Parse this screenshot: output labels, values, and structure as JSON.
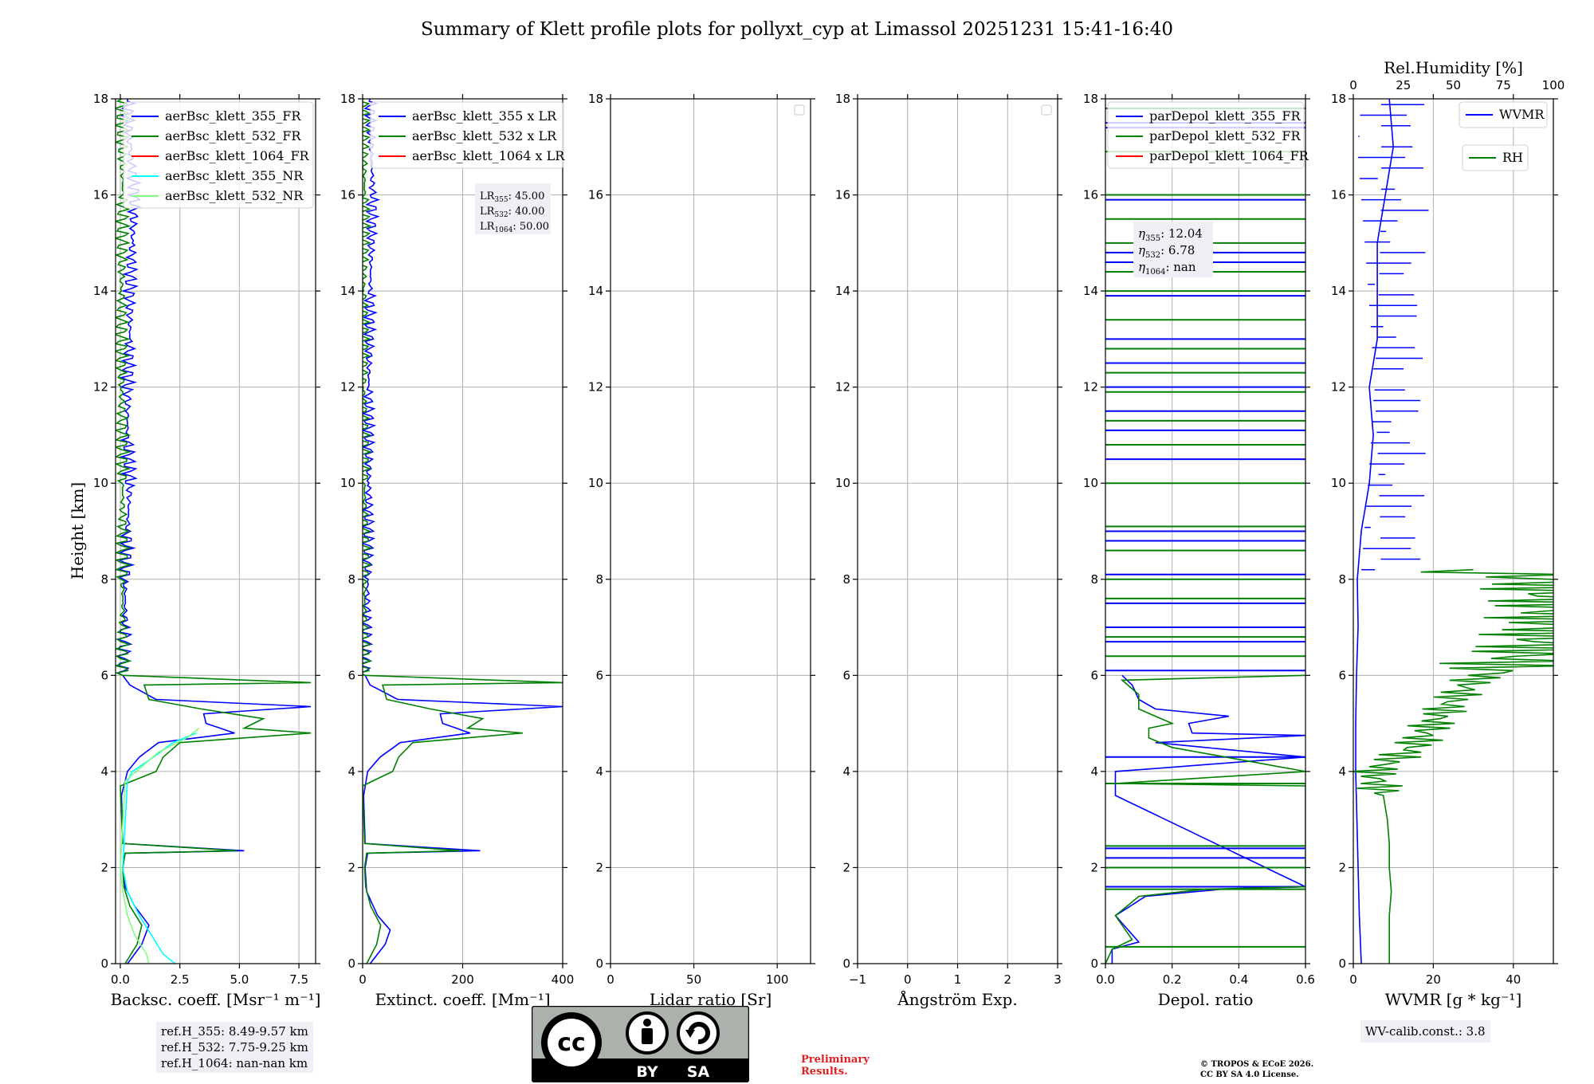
{
  "title": "Summary of Klett profile plots for pollyxt_cyp at Limassol 20251231 15:41-16:40",
  "ylabel": "Height [km]",
  "chart_data": [
    {
      "type": "line",
      "id": "bsc",
      "xlabel": "Backsc. coeff. [Msr⁻¹ m⁻¹]",
      "xlim": [
        -0.2,
        8.2
      ],
      "ylim": [
        0,
        18
      ],
      "xticks": [
        0,
        2.5,
        5,
        7.5
      ],
      "xticklabels": [
        "0.0",
        "2.5",
        "5.0",
        "7.5"
      ],
      "yticks": [
        0,
        2,
        4,
        6,
        8,
        10,
        12,
        14,
        16,
        18
      ],
      "legend": "top-right",
      "series": [
        {
          "name": "aerBsc_klett_355_FR",
          "color": "#0000ff",
          "alt": [
            0,
            0.4,
            0.8,
            1.2,
            1.6,
            2.0,
            2.3,
            2.35,
            2.5,
            3.5,
            4.0,
            4.3,
            4.6,
            4.8,
            5.0,
            5.2,
            5.35,
            5.5,
            5.8,
            6.0,
            7,
            8,
            9,
            10,
            11,
            12,
            13,
            14,
            15,
            16,
            17,
            18
          ],
          "val": [
            0.3,
            0.9,
            1.2,
            0.6,
            0.2,
            0.1,
            0.2,
            5.2,
            0.1,
            0.05,
            0.3,
            0.8,
            1.6,
            4.8,
            3.6,
            3.5,
            8.0,
            1.5,
            0.4,
            0.1,
            0.2,
            0.2,
            0.3,
            0.4,
            0.3,
            0.3,
            0.4,
            0.4,
            0.5,
            0.6,
            0.4,
            0.3
          ]
        },
        {
          "name": "aerBsc_klett_532_FR",
          "color": "#008000",
          "alt": [
            0,
            0.4,
            0.8,
            1.2,
            1.6,
            2.0,
            2.3,
            2.35,
            2.5,
            3.7,
            4.0,
            4.3,
            4.6,
            4.8,
            4.9,
            5.1,
            5.3,
            5.5,
            5.8,
            5.85,
            6.0,
            8,
            10,
            12,
            14,
            16,
            18
          ],
          "val": [
            0.2,
            0.7,
            0.9,
            0.4,
            0.15,
            0.1,
            0.2,
            4.9,
            0.1,
            0.0,
            1.5,
            1.8,
            2.5,
            8.0,
            5.2,
            6.0,
            3.4,
            1.2,
            1.0,
            8.0,
            0.1,
            0.1,
            0.1,
            0.05,
            0.05,
            0.1,
            0.05
          ]
        },
        {
          "name": "aerBsc_klett_1064_FR",
          "color": "#ff0000",
          "alt": [],
          "val": []
        },
        {
          "name": "aerBsc_klett_355_NR",
          "color": "#00ffff",
          "alt": [
            0,
            0.2,
            0.6,
            1.0,
            1.5,
            2.0,
            3.8,
            4.0,
            4.3,
            4.6,
            4.8
          ],
          "val": [
            2.3,
            1.8,
            1.3,
            0.8,
            0.3,
            0.1,
            0.3,
            0.5,
            1.4,
            2.2,
            3.2
          ]
        },
        {
          "name": "aerBsc_klett_532_NR",
          "color": "#80ff80",
          "alt": [
            0,
            0.2,
            0.6,
            1.0,
            1.5,
            2.0,
            3.8,
            4.1,
            4.4,
            4.7,
            4.9
          ],
          "val": [
            1.2,
            1.1,
            0.6,
            0.3,
            0.1,
            0.0,
            0.2,
            0.9,
            1.6,
            2.8,
            3.3
          ]
        }
      ],
      "info": [
        "ref.H_355: 8.49-9.57 km",
        "ref.H_532: 7.75-9.25 km",
        "ref.H_1064: nan-nan km"
      ]
    },
    {
      "type": "line",
      "id": "ext",
      "xlabel": "Extinct. coeff. [Mm⁻¹]",
      "xlim": [
        0,
        400
      ],
      "ylim": [
        0,
        18
      ],
      "xticks": [
        0,
        200,
        400
      ],
      "xticklabels": [
        "0",
        "200",
        "400"
      ],
      "yticks": [
        0,
        2,
        4,
        6,
        8,
        10,
        12,
        14,
        16,
        18
      ],
      "legend": "top-right",
      "series": [
        {
          "name": "aerBsc_klett_355 x LR",
          "color": "#0000ff",
          "alt": [
            0,
            0.4,
            0.7,
            1.0,
            1.5,
            2.0,
            2.3,
            2.35,
            2.5,
            3.5,
            4.0,
            4.3,
            4.6,
            4.8,
            5.0,
            5.2,
            5.35,
            5.5,
            5.8,
            6.0,
            8,
            10,
            12,
            14,
            16,
            18
          ],
          "val": [
            15,
            45,
            55,
            30,
            8,
            5,
            10,
            235,
            5,
            2,
            10,
            35,
            75,
            215,
            160,
            155,
            400,
            70,
            15,
            5,
            10,
            12,
            12,
            15,
            20,
            15
          ]
        },
        {
          "name": "aerBsc_klett_532 x LR",
          "color": "#008000",
          "alt": [
            0,
            0.4,
            0.8,
            1.2,
            1.6,
            2.0,
            2.3,
            2.35,
            2.5,
            3.7,
            4.0,
            4.3,
            4.6,
            4.8,
            4.9,
            5.1,
            5.3,
            5.5,
            5.8,
            5.85,
            6.0,
            8,
            10,
            12,
            14,
            16,
            18
          ],
          "val": [
            8,
            28,
            36,
            16,
            6,
            4,
            8,
            195,
            4,
            0,
            60,
            72,
            100,
            320,
            210,
            240,
            136,
            48,
            40,
            400,
            4,
            4,
            4,
            2,
            2,
            4,
            2
          ]
        },
        {
          "name": "aerBsc_klett_1064 x LR",
          "color": "#ff0000",
          "alt": [],
          "val": []
        }
      ],
      "lr": [
        {
          "sub": "355",
          "val": "45.00"
        },
        {
          "sub": "532",
          "val": "40.00"
        },
        {
          "sub": "1064",
          "val": "50.00"
        }
      ]
    },
    {
      "type": "line",
      "id": "lr",
      "xlabel": "Lidar ratio [Sr]",
      "xlim": [
        0,
        120
      ],
      "ylim": [
        0,
        18
      ],
      "xticks": [
        0,
        50,
        100
      ],
      "xticklabels": [
        "0",
        "50",
        "100"
      ],
      "yticks": [
        0,
        2,
        4,
        6,
        8,
        10,
        12,
        14,
        16,
        18
      ],
      "series": []
    },
    {
      "type": "line",
      "id": "ang",
      "xlabel": "Ångström Exp.",
      "xlim": [
        -1,
        3
      ],
      "ylim": [
        0,
        18
      ],
      "xticks": [
        -1,
        0,
        1,
        2,
        3
      ],
      "xticklabels": [
        "−1",
        "0",
        "1",
        "2",
        "3"
      ],
      "yticks": [
        0,
        2,
        4,
        6,
        8,
        10,
        12,
        14,
        16,
        18
      ],
      "series": []
    },
    {
      "type": "line",
      "id": "dep",
      "xlabel": "Depol. ratio",
      "xlim": [
        0,
        0.6
      ],
      "ylim": [
        0,
        18
      ],
      "xticks": [
        0,
        0.2,
        0.4,
        0.6
      ],
      "xticklabels": [
        "0.0",
        "0.2",
        "0.4",
        "0.6"
      ],
      "yticks": [
        0,
        2,
        4,
        6,
        8,
        10,
        12,
        14,
        16,
        18
      ],
      "legend": "top-right",
      "series": [
        {
          "name": "parDepol_klett_355_FR",
          "color": "#0000ff",
          "alt": [
            0,
            0.3,
            0.45,
            1.0,
            1.4,
            1.55,
            1.6,
            3.5,
            4.0,
            4.3,
            4.6,
            4.75,
            4.8,
            5.0,
            5.15,
            5.3,
            5.5,
            5.8,
            6.0
          ],
          "val": [
            0.02,
            0.02,
            0.1,
            0.03,
            0.12,
            0.35,
            0.6,
            0.03,
            0.03,
            0.6,
            0.15,
            0.6,
            0.26,
            0.25,
            0.37,
            0.15,
            0.1,
            0.08,
            0.05
          ],
          "spikes": [
            1.6,
            2.2,
            2.4,
            4.3,
            6.1,
            6.7,
            7.0,
            7.5,
            8.1,
            8.8,
            9.0,
            10.5,
            11.1,
            11.5,
            12.0,
            12.5,
            13.0,
            13.9,
            14.6,
            14.8,
            15.9,
            16.0,
            17.4,
            17.5
          ]
        },
        {
          "name": "parDepol_klett_532_FR",
          "color": "#008000",
          "alt": [
            0,
            0.3,
            0.5,
            1.0,
            1.4,
            1.55,
            1.6,
            3.7,
            3.75,
            4.0,
            4.5,
            4.7,
            4.9,
            5.0,
            5.3,
            5.6,
            5.9,
            6.0
          ],
          "val": [
            0.0,
            0.02,
            0.08,
            0.03,
            0.1,
            0.3,
            0.6,
            0.6,
            0.03,
            0.6,
            0.2,
            0.13,
            0.13,
            0.2,
            0.1,
            0.1,
            0.05,
            0.6
          ],
          "spikes": [
            0.35,
            1.55,
            2.0,
            2.45,
            3.75,
            6.4,
            6.8,
            7.6,
            8.0,
            8.6,
            9.1,
            10.0,
            10.8,
            11.3,
            11.9,
            12.3,
            12.8,
            13.4,
            14.0,
            14.4,
            15.0,
            15.5,
            16.0,
            16.9,
            17.8
          ]
        },
        {
          "name": "parDepol_klett_1064_FR",
          "color": "#ff0000",
          "alt": [],
          "val": [],
          "spikes": []
        }
      ],
      "eta": [
        {
          "sub": "355",
          "val": "12.04"
        },
        {
          "sub": "532",
          "val": "6.78"
        },
        {
          "sub": "1064",
          "val": "nan"
        }
      ]
    },
    {
      "type": "line",
      "id": "wv",
      "xlabel": "WVMR [g * kg⁻¹]",
      "xlim": [
        0,
        50
      ],
      "ylim": [
        0,
        18
      ],
      "xticks": [
        0,
        20,
        40
      ],
      "xticklabels": [
        "0",
        "20",
        "40"
      ],
      "yticks": [
        0,
        2,
        4,
        6,
        8,
        10,
        12,
        14,
        16,
        18
      ],
      "top_label": "Rel.Humidity [%]",
      "top_lim": [
        0,
        100
      ],
      "top_ticks": [
        0,
        25,
        50,
        75,
        100
      ],
      "series": [
        {
          "name": "WVMR",
          "color": "#0000ff",
          "alt": [
            0,
            1,
            2,
            3,
            4,
            5,
            6,
            7,
            8,
            9,
            10,
            11,
            12,
            13,
            14,
            15,
            16,
            17,
            18
          ],
          "val": [
            2.0,
            1.5,
            1.2,
            0.9,
            0.6,
            0.6,
            0.8,
            1.2,
            1.0,
            2.0,
            4.0,
            5.0,
            4.0,
            6.0,
            6.0,
            6.0,
            8.0,
            10.0,
            9.0
          ]
        },
        {
          "name": "RH",
          "color": "#008000",
          "alt": [
            0,
            0.5,
            1,
            1.5,
            2,
            2.5,
            3,
            3.5,
            4,
            4.5,
            5,
            5.5,
            5.9,
            6.1,
            6.5,
            7.0,
            7.5,
            8.0,
            8.2
          ],
          "val": [
            18,
            18,
            18,
            19,
            18,
            18,
            17,
            15,
            10,
            30,
            40,
            50,
            60,
            70,
            90,
            100,
            100,
            95,
            60
          ]
        }
      ],
      "info": [
        "WV-calib.const.: 3.8"
      ]
    }
  ],
  "footer": {
    "cc_top": "cc",
    "cc_by": "BY",
    "cc_sa": "SA",
    "preliminary": [
      "Preliminary",
      "Results."
    ],
    "copyright": [
      "© TROPOS & ECoE 2026.",
      "CC BY SA 4.0 License."
    ]
  },
  "colors": {
    "grid": "#b0b0b0",
    "box": "#eef0f6"
  }
}
